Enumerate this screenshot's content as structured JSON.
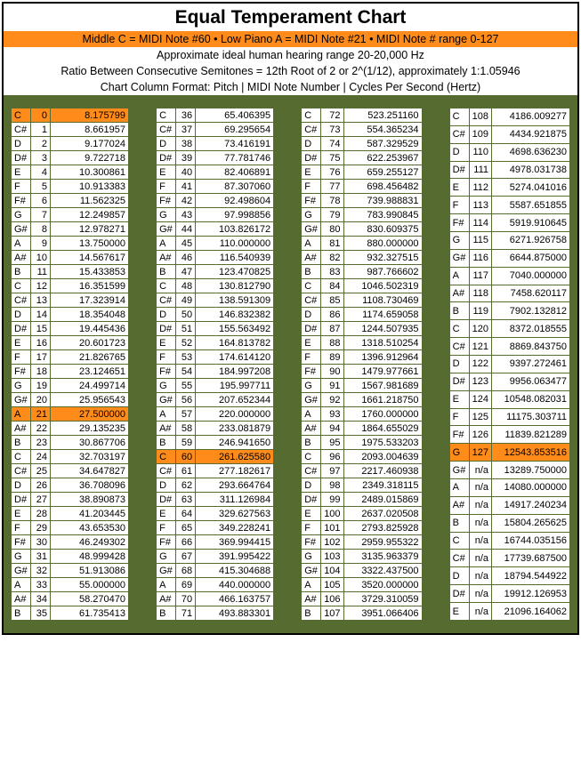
{
  "title": "Equal Temperament Chart",
  "header_orange": "Middle C = MIDI Note #60 • Low Piano A = MIDI Note #21 • MIDI Note # range 0-127",
  "sub1": "Approximate ideal human hearing range 20-20,000 Hz",
  "sub2": "Ratio Between Consecutive Semitones = 12th Root of 2 or 2^(1/12), approximately 1:1.05946",
  "sub3": "Chart Column Format: Pitch | MIDI Note Number | Cycles Per Second (Hertz)",
  "highlight_color": "#ff8c1a",
  "frame_color": "#556b2f",
  "columns": [
    {
      "rows": [
        {
          "p": "C",
          "m": "0",
          "hz": "8.175799",
          "hl": true
        },
        {
          "p": "C#",
          "m": "1",
          "hz": "8.661957"
        },
        {
          "p": "D",
          "m": "2",
          "hz": "9.177024"
        },
        {
          "p": "D#",
          "m": "3",
          "hz": "9.722718"
        },
        {
          "p": "E",
          "m": "4",
          "hz": "10.300861"
        },
        {
          "p": "F",
          "m": "5",
          "hz": "10.913383"
        },
        {
          "p": "F#",
          "m": "6",
          "hz": "11.562325"
        },
        {
          "p": "G",
          "m": "7",
          "hz": "12.249857"
        },
        {
          "p": "G#",
          "m": "8",
          "hz": "12.978271"
        },
        {
          "p": "A",
          "m": "9",
          "hz": "13.750000"
        },
        {
          "p": "A#",
          "m": "10",
          "hz": "14.567617"
        },
        {
          "p": "B",
          "m": "11",
          "hz": "15.433853"
        },
        {
          "p": "C",
          "m": "12",
          "hz": "16.351599"
        },
        {
          "p": "C#",
          "m": "13",
          "hz": "17.323914"
        },
        {
          "p": "D",
          "m": "14",
          "hz": "18.354048"
        },
        {
          "p": "D#",
          "m": "15",
          "hz": "19.445436"
        },
        {
          "p": "E",
          "m": "16",
          "hz": "20.601723"
        },
        {
          "p": "F",
          "m": "17",
          "hz": "21.826765"
        },
        {
          "p": "F#",
          "m": "18",
          "hz": "23.124651"
        },
        {
          "p": "G",
          "m": "19",
          "hz": "24.499714"
        },
        {
          "p": "G#",
          "m": "20",
          "hz": "25.956543"
        },
        {
          "p": "A",
          "m": "21",
          "hz": "27.500000",
          "hl": true
        },
        {
          "p": "A#",
          "m": "22",
          "hz": "29.135235"
        },
        {
          "p": "B",
          "m": "23",
          "hz": "30.867706"
        },
        {
          "p": "C",
          "m": "24",
          "hz": "32.703197"
        },
        {
          "p": "C#",
          "m": "25",
          "hz": "34.647827"
        },
        {
          "p": "D",
          "m": "26",
          "hz": "36.708096"
        },
        {
          "p": "D#",
          "m": "27",
          "hz": "38.890873"
        },
        {
          "p": "E",
          "m": "28",
          "hz": "41.203445"
        },
        {
          "p": "F",
          "m": "29",
          "hz": "43.653530"
        },
        {
          "p": "F#",
          "m": "30",
          "hz": "46.249302"
        },
        {
          "p": "G",
          "m": "31",
          "hz": "48.999428"
        },
        {
          "p": "G#",
          "m": "32",
          "hz": "51.913086"
        },
        {
          "p": "A",
          "m": "33",
          "hz": "55.000000"
        },
        {
          "p": "A#",
          "m": "34",
          "hz": "58.270470"
        },
        {
          "p": "B",
          "m": "35",
          "hz": "61.735413"
        }
      ]
    },
    {
      "rows": [
        {
          "p": "C",
          "m": "36",
          "hz": "65.406395"
        },
        {
          "p": "C#",
          "m": "37",
          "hz": "69.295654"
        },
        {
          "p": "D",
          "m": "38",
          "hz": "73.416191"
        },
        {
          "p": "D#",
          "m": "39",
          "hz": "77.781746"
        },
        {
          "p": "E",
          "m": "40",
          "hz": "82.406891"
        },
        {
          "p": "F",
          "m": "41",
          "hz": "87.307060"
        },
        {
          "p": "F#",
          "m": "42",
          "hz": "92.498604"
        },
        {
          "p": "G",
          "m": "43",
          "hz": "97.998856"
        },
        {
          "p": "G#",
          "m": "44",
          "hz": "103.826172"
        },
        {
          "p": "A",
          "m": "45",
          "hz": "110.000000"
        },
        {
          "p": "A#",
          "m": "46",
          "hz": "116.540939"
        },
        {
          "p": "B",
          "m": "47",
          "hz": "123.470825"
        },
        {
          "p": "C",
          "m": "48",
          "hz": "130.812790"
        },
        {
          "p": "C#",
          "m": "49",
          "hz": "138.591309"
        },
        {
          "p": "D",
          "m": "50",
          "hz": "146.832382"
        },
        {
          "p": "D#",
          "m": "51",
          "hz": "155.563492"
        },
        {
          "p": "E",
          "m": "52",
          "hz": "164.813782"
        },
        {
          "p": "F",
          "m": "53",
          "hz": "174.614120"
        },
        {
          "p": "F#",
          "m": "54",
          "hz": "184.997208"
        },
        {
          "p": "G",
          "m": "55",
          "hz": "195.997711"
        },
        {
          "p": "G#",
          "m": "56",
          "hz": "207.652344"
        },
        {
          "p": "A",
          "m": "57",
          "hz": "220.000000"
        },
        {
          "p": "A#",
          "m": "58",
          "hz": "233.081879"
        },
        {
          "p": "B",
          "m": "59",
          "hz": "246.941650"
        },
        {
          "p": "C",
          "m": "60",
          "hz": "261.625580",
          "hl": true
        },
        {
          "p": "C#",
          "m": "61",
          "hz": "277.182617"
        },
        {
          "p": "D",
          "m": "62",
          "hz": "293.664764"
        },
        {
          "p": "D#",
          "m": "63",
          "hz": "311.126984"
        },
        {
          "p": "E",
          "m": "64",
          "hz": "329.627563"
        },
        {
          "p": "F",
          "m": "65",
          "hz": "349.228241"
        },
        {
          "p": "F#",
          "m": "66",
          "hz": "369.994415"
        },
        {
          "p": "G",
          "m": "67",
          "hz": "391.995422"
        },
        {
          "p": "G#",
          "m": "68",
          "hz": "415.304688"
        },
        {
          "p": "A",
          "m": "69",
          "hz": "440.000000"
        },
        {
          "p": "A#",
          "m": "70",
          "hz": "466.163757"
        },
        {
          "p": "B",
          "m": "71",
          "hz": "493.883301"
        }
      ]
    },
    {
      "rows": [
        {
          "p": "C",
          "m": "72",
          "hz": "523.251160"
        },
        {
          "p": "C#",
          "m": "73",
          "hz": "554.365234"
        },
        {
          "p": "D",
          "m": "74",
          "hz": "587.329529"
        },
        {
          "p": "D#",
          "m": "75",
          "hz": "622.253967"
        },
        {
          "p": "E",
          "m": "76",
          "hz": "659.255127"
        },
        {
          "p": "F",
          "m": "77",
          "hz": "698.456482"
        },
        {
          "p": "F#",
          "m": "78",
          "hz": "739.988831"
        },
        {
          "p": "G",
          "m": "79",
          "hz": "783.990845"
        },
        {
          "p": "G#",
          "m": "80",
          "hz": "830.609375"
        },
        {
          "p": "A",
          "m": "81",
          "hz": "880.000000"
        },
        {
          "p": "A#",
          "m": "82",
          "hz": "932.327515"
        },
        {
          "p": "B",
          "m": "83",
          "hz": "987.766602"
        },
        {
          "p": "C",
          "m": "84",
          "hz": "1046.502319"
        },
        {
          "p": "C#",
          "m": "85",
          "hz": "1108.730469"
        },
        {
          "p": "D",
          "m": "86",
          "hz": "1174.659058"
        },
        {
          "p": "D#",
          "m": "87",
          "hz": "1244.507935"
        },
        {
          "p": "E",
          "m": "88",
          "hz": "1318.510254"
        },
        {
          "p": "F",
          "m": "89",
          "hz": "1396.912964"
        },
        {
          "p": "F#",
          "m": "90",
          "hz": "1479.977661"
        },
        {
          "p": "G",
          "m": "91",
          "hz": "1567.981689"
        },
        {
          "p": "G#",
          "m": "92",
          "hz": "1661.218750"
        },
        {
          "p": "A",
          "m": "93",
          "hz": "1760.000000"
        },
        {
          "p": "A#",
          "m": "94",
          "hz": "1864.655029"
        },
        {
          "p": "B",
          "m": "95",
          "hz": "1975.533203"
        },
        {
          "p": "C",
          "m": "96",
          "hz": "2093.004639"
        },
        {
          "p": "C#",
          "m": "97",
          "hz": "2217.460938"
        },
        {
          "p": "D",
          "m": "98",
          "hz": "2349.318115"
        },
        {
          "p": "D#",
          "m": "99",
          "hz": "2489.015869"
        },
        {
          "p": "E",
          "m": "100",
          "hz": "2637.020508"
        },
        {
          "p": "F",
          "m": "101",
          "hz": "2793.825928"
        },
        {
          "p": "F#",
          "m": "102",
          "hz": "2959.955322"
        },
        {
          "p": "G",
          "m": "103",
          "hz": "3135.963379"
        },
        {
          "p": "G#",
          "m": "104",
          "hz": "3322.437500"
        },
        {
          "p": "A",
          "m": "105",
          "hz": "3520.000000"
        },
        {
          "p": "A#",
          "m": "106",
          "hz": "3729.310059"
        },
        {
          "p": "B",
          "m": "107",
          "hz": "3951.066406"
        }
      ]
    },
    {
      "rows": [
        {
          "p": "C",
          "m": "108",
          "hz": "4186.009277"
        },
        {
          "p": "C#",
          "m": "109",
          "hz": "4434.921875"
        },
        {
          "p": "D",
          "m": "110",
          "hz": "4698.636230"
        },
        {
          "p": "D#",
          "m": "111",
          "hz": "4978.031738"
        },
        {
          "p": "E",
          "m": "112",
          "hz": "5274.041016"
        },
        {
          "p": "F",
          "m": "113",
          "hz": "5587.651855"
        },
        {
          "p": "F#",
          "m": "114",
          "hz": "5919.910645"
        },
        {
          "p": "G",
          "m": "115",
          "hz": "6271.926758"
        },
        {
          "p": "G#",
          "m": "116",
          "hz": "6644.875000"
        },
        {
          "p": "A",
          "m": "117",
          "hz": "7040.000000"
        },
        {
          "p": "A#",
          "m": "118",
          "hz": "7458.620117"
        },
        {
          "p": "B",
          "m": "119",
          "hz": "7902.132812"
        },
        {
          "p": "C",
          "m": "120",
          "hz": "8372.018555"
        },
        {
          "p": "C#",
          "m": "121",
          "hz": "8869.843750"
        },
        {
          "p": "D",
          "m": "122",
          "hz": "9397.272461"
        },
        {
          "p": "D#",
          "m": "123",
          "hz": "9956.063477"
        },
        {
          "p": "E",
          "m": "124",
          "hz": "10548.082031"
        },
        {
          "p": "F",
          "m": "125",
          "hz": "11175.303711"
        },
        {
          "p": "F#",
          "m": "126",
          "hz": "11839.821289"
        },
        {
          "p": "G",
          "m": "127",
          "hz": "12543.853516",
          "hl": true
        },
        {
          "p": "G#",
          "m": "n/a",
          "hz": "13289.750000"
        },
        {
          "p": "A",
          "m": "n/a",
          "hz": "14080.000000"
        },
        {
          "p": "A#",
          "m": "n/a",
          "hz": "14917.240234"
        },
        {
          "p": "B",
          "m": "n/a",
          "hz": "15804.265625"
        },
        {
          "p": "C",
          "m": "n/a",
          "hz": "16744.035156"
        },
        {
          "p": "C#",
          "m": "n/a",
          "hz": "17739.687500"
        },
        {
          "p": "D",
          "m": "n/a",
          "hz": "18794.544922"
        },
        {
          "p": "D#",
          "m": "n/a",
          "hz": "19912.126953"
        },
        {
          "p": "E",
          "m": "n/a",
          "hz": "21096.164062"
        }
      ]
    }
  ]
}
